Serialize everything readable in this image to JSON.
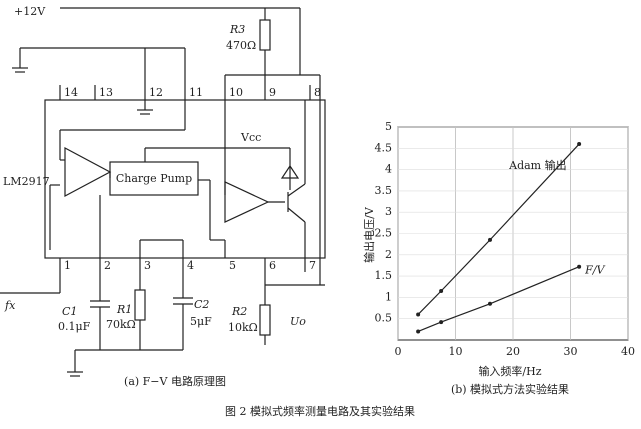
{
  "circuit": {
    "supply": "+12V",
    "r3": "R3",
    "r3_value": "470Ω",
    "top_pins": [
      "14",
      "13",
      "12",
      "11",
      "10",
      "9",
      "8"
    ],
    "bottom_pins": [
      "1",
      "2",
      "3",
      "4",
      "5",
      "6",
      "7"
    ],
    "vcc": "Vcc",
    "ic": "LM2917",
    "charge_pump": "Charge Pump",
    "input": "fx",
    "c1": "C1",
    "c1_value": "0.1μF",
    "r1": "R1",
    "r1_value": "70kΩ",
    "c2": "C2",
    "c2_value": "5μF",
    "r2": "R2",
    "r2_value": "10kΩ",
    "output": "Uo",
    "caption": "(a) F−V 电路原理图"
  },
  "chart_data": {
    "type": "line",
    "xlabel": "输入频率/Hz",
    "ylabel": "输出电压/V",
    "caption": "(b) 模拟式方法实验结果",
    "x": [
      3.5,
      7.5,
      16,
      31.5
    ],
    "series": [
      {
        "name": "Adam 输出",
        "color": "#222",
        "values": [
          0.6,
          1.15,
          2.35,
          4.6
        ]
      },
      {
        "name": "F/V",
        "color": "#222",
        "values": [
          0.2,
          0.42,
          0.85,
          1.72
        ]
      }
    ],
    "xlim": [
      0,
      40
    ],
    "xticks": [
      0,
      10,
      20,
      30,
      40
    ],
    "ylim": [
      0,
      5
    ],
    "yticks": [
      0.5,
      1,
      1.5,
      2,
      2.5,
      3,
      3.5,
      4,
      4.5,
      5
    ],
    "grid": true
  },
  "figure_caption": "图 2 模拟式频率测量电路及其实验结果"
}
